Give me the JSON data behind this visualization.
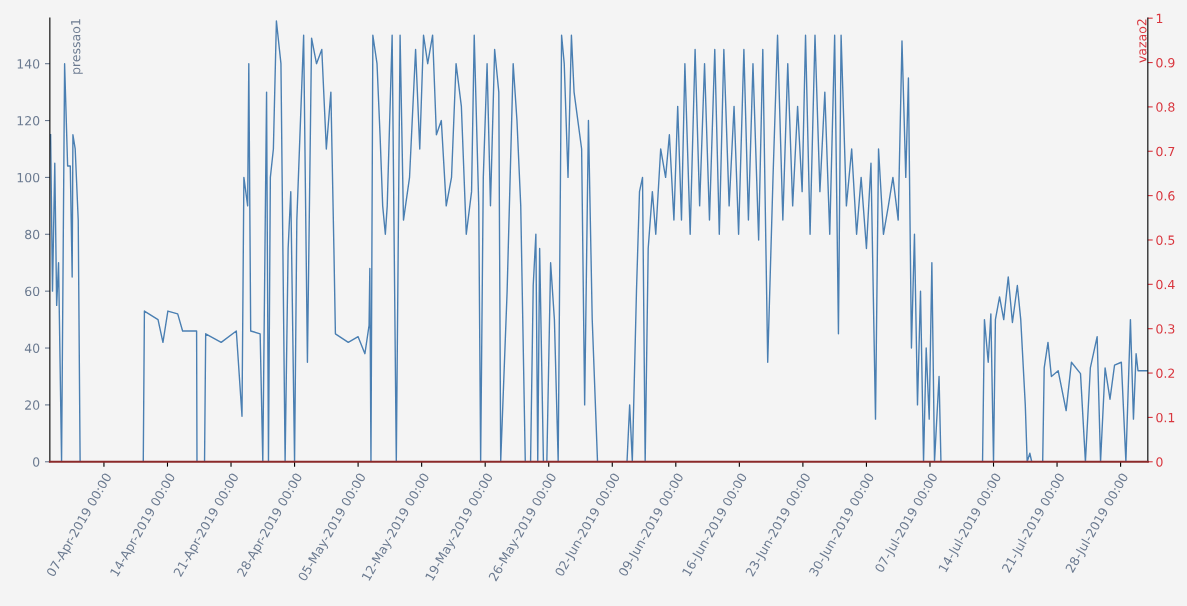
{
  "chart_data": {
    "type": "line",
    "ylabel": "pressao1",
    "y2label": "vazao2",
    "xlim": [
      "2019-04-01T01:00",
      "2019-07-31T00:00"
    ],
    "xticks": [
      {
        "value": "2019-04-07",
        "label": "07-Apr-2019 00:00"
      },
      {
        "value": "2019-04-14",
        "label": "14-Apr-2019 00:00"
      },
      {
        "value": "2019-04-21",
        "label": "21-Apr-2019 00:00"
      },
      {
        "value": "2019-04-28",
        "label": "28-Apr-2019 00:00"
      },
      {
        "value": "2019-05-05",
        "label": "05-May-2019 00:00"
      },
      {
        "value": "2019-05-12",
        "label": "12-May-2019 00:00"
      },
      {
        "value": "2019-05-19",
        "label": "19-May-2019 00:00"
      },
      {
        "value": "2019-05-26",
        "label": "26-May-2019 00:00"
      },
      {
        "value": "2019-06-02",
        "label": "02-Jun-2019 00:00"
      },
      {
        "value": "2019-06-09",
        "label": "09-Jun-2019 00:00"
      },
      {
        "value": "2019-06-16",
        "label": "16-Jun-2019 00:00"
      },
      {
        "value": "2019-06-23",
        "label": "23-Jun-2019 00:00"
      },
      {
        "value": "2019-06-30",
        "label": "30-Jun-2019 00:00"
      },
      {
        "value": "2019-07-07",
        "label": "07-Jul-2019 00:00"
      },
      {
        "value": "2019-07-14",
        "label": "14-Jul-2019 00:00"
      },
      {
        "value": "2019-07-21",
        "label": "21-Jul-2019 00:00"
      },
      {
        "value": "2019-07-28",
        "label": "28-Jul-2019 00:00"
      }
    ],
    "ylim": [
      0,
      156
    ],
    "yticks": [
      0,
      20,
      40,
      60,
      80,
      100,
      120,
      140
    ],
    "y2lim": [
      0,
      1
    ],
    "y2ticks": [
      0,
      0.1,
      0.2,
      0.3,
      0.4,
      0.5,
      0.6,
      0.7,
      0.8,
      0.9,
      1
    ],
    "grid": false,
    "legend": false,
    "marker": "none",
    "line_style": "solid",
    "series": [
      {
        "color": "#4a7fb2",
        "x": [
          "2019-04-01T03:00",
          "2019-04-01T08:00",
          "2019-04-01T14:00",
          "2019-04-01T19:00",
          "2019-04-02T00:00",
          "2019-04-02T08:00",
          "2019-04-02T16:00",
          "2019-04-03T00:00",
          "2019-04-03T07:00",
          "2019-04-03T12:00",
          "2019-04-03T14:00",
          "2019-04-03T20:00",
          "2019-04-04T04:00",
          "2019-04-04T09:00",
          "2019-04-11T08:00",
          "2019-04-11T11:00",
          "2019-04-12T23:00",
          "2019-04-13T12:00",
          "2019-04-14T01:00",
          "2019-04-15T03:00",
          "2019-04-15T16:00",
          "2019-04-17T05:00",
          "2019-04-17T06:00",
          "2019-04-18T02:00",
          "2019-04-18T05:00",
          "2019-04-19T22:00",
          "2019-04-21T14:00",
          "2019-04-22T05:00",
          "2019-04-22T10:00",
          "2019-04-22T20:00",
          "2019-04-22T23:00",
          "2019-04-23T04:00",
          "2019-04-24T05:00",
          "2019-04-24T12:00",
          "2019-04-24T22:00",
          "2019-04-25T03:00",
          "2019-04-25T08:00",
          "2019-04-25T16:00",
          "2019-04-26T00:00",
          "2019-04-26T08:00",
          "2019-04-26T12:00",
          "2019-04-26T23:00",
          "2019-04-27T07:00",
          "2019-04-27T14:00",
          "2019-04-28T00:00",
          "2019-04-28T06:00",
          "2019-04-28T14:00",
          "2019-04-29T00:00",
          "2019-04-29T10:00",
          "2019-04-29T21:00",
          "2019-04-30T10:00",
          "2019-05-01T00:00",
          "2019-05-01T12:00",
          "2019-05-02T00:00",
          "2019-05-02T08:00",
          "2019-05-02T12:00",
          "2019-05-03T22:00",
          "2019-05-05T00:00",
          "2019-05-05T18:00",
          "2019-05-06T05:00",
          "2019-05-06T07:00",
          "2019-05-06T10:00",
          "2019-05-06T15:00",
          "2019-05-07T02:00",
          "2019-05-07T10:00",
          "2019-05-07T17:00",
          "2019-05-08T00:00",
          "2019-05-08T05:00",
          "2019-05-08T18:00",
          "2019-05-09T05:00",
          "2019-05-09T15:00",
          "2019-05-10T00:00",
          "2019-05-10T16:00",
          "2019-05-11T08:00",
          "2019-05-11T19:00",
          "2019-05-12T05:00",
          "2019-05-12T16:00",
          "2019-05-13T05:00",
          "2019-05-13T15:00",
          "2019-05-14T04:00",
          "2019-05-14T17:00",
          "2019-05-15T07:00",
          "2019-05-15T19:00",
          "2019-05-16T09:00",
          "2019-05-16T22:00",
          "2019-05-17T12:00",
          "2019-05-17T19:00",
          "2019-05-18T07:00",
          "2019-05-18T12:00",
          "2019-05-18T19:00",
          "2019-05-19T05:00",
          "2019-05-19T14:00",
          "2019-05-20T01:00",
          "2019-05-20T12:00",
          "2019-05-20T17:00",
          "2019-05-21T10:00",
          "2019-05-21T17:00",
          "2019-05-22T02:00",
          "2019-05-22T12:00",
          "2019-05-22T22:00",
          "2019-05-23T10:00",
          "2019-05-24T00:00",
          "2019-05-24T07:00",
          "2019-05-24T14:00",
          "2019-05-24T19:00",
          "2019-05-25T00:00",
          "2019-05-25T10:00",
          "2019-05-25T19:00",
          "2019-05-26T05:00",
          "2019-05-26T15:00",
          "2019-05-27T01:00",
          "2019-05-27T10:00",
          "2019-05-27T17:00",
          "2019-05-28T03:00",
          "2019-05-28T12:00",
          "2019-05-28T19:00",
          "2019-05-29T05:00",
          "2019-05-29T15:00",
          "2019-05-29T23:00",
          "2019-05-30T09:00",
          "2019-05-30T19:00",
          "2019-05-31T09:00",
          "2019-06-01T10:00",
          "2019-06-03T15:00",
          "2019-06-03T22:00",
          "2019-06-04T05:00",
          "2019-06-04T16:00",
          "2019-06-05T00:00",
          "2019-06-05T08:00",
          "2019-06-05T15:00",
          "2019-06-05T23:00",
          "2019-06-06T10:00",
          "2019-06-06T19:00",
          "2019-06-07T08:00",
          "2019-06-07T21:00",
          "2019-06-08T07:00",
          "2019-06-08T19:00",
          "2019-06-09T05:00",
          "2019-06-09T15:00",
          "2019-06-10T00:00",
          "2019-06-10T14:00",
          "2019-06-11T03:00",
          "2019-06-11T15:00",
          "2019-06-12T04:00",
          "2019-06-12T17:00",
          "2019-06-13T07:00",
          "2019-06-13T19:00",
          "2019-06-14T07:00",
          "2019-06-14T21:00",
          "2019-06-15T10:00",
          "2019-06-15T22:00",
          "2019-06-16T12:00",
          "2019-06-17T00:00",
          "2019-06-17T12:00",
          "2019-06-18T03:00",
          "2019-06-18T14:00",
          "2019-06-19T03:00",
          "2019-06-19T17:00",
          "2019-06-20T05:00",
          "2019-06-20T19:00",
          "2019-06-21T08:00",
          "2019-06-21T21:00",
          "2019-06-22T10:00",
          "2019-06-22T22:00",
          "2019-06-23T07:00",
          "2019-06-23T19:00",
          "2019-06-24T08:00",
          "2019-06-24T21:00",
          "2019-06-25T10:00",
          "2019-06-25T23:00",
          "2019-06-26T12:00",
          "2019-06-26T22:00",
          "2019-06-27T05:00",
          "2019-06-27T19:00",
          "2019-06-28T09:00",
          "2019-06-28T22:00",
          "2019-06-29T10:00",
          "2019-06-30T00:00",
          "2019-06-30T12:00",
          "2019-07-01T00:00",
          "2019-07-01T08:00",
          "2019-07-01T21:00",
          "2019-07-02T10:00",
          "2019-07-02T22:00",
          "2019-07-03T12:00",
          "2019-07-03T22:00",
          "2019-07-04T08:00",
          "2019-07-04T15:00",
          "2019-07-04T23:00",
          "2019-07-05T07:00",
          "2019-07-05T15:00",
          "2019-07-05T23:00",
          "2019-07-06T07:00",
          "2019-07-06T14:00",
          "2019-07-06T22:00",
          "2019-07-07T05:00",
          "2019-07-07T12:00",
          "2019-07-08T00:00",
          "2019-07-08T05:00",
          "2019-07-12T19:00",
          "2019-07-13T00:00",
          "2019-07-13T10:00",
          "2019-07-13T17:00",
          "2019-07-14T00:00",
          "2019-07-14T05:00",
          "2019-07-14T16:00",
          "2019-07-15T03:00",
          "2019-07-15T15:00",
          "2019-07-16T02:00",
          "2019-07-16T15:00",
          "2019-07-17T00:00",
          "2019-07-17T12:00",
          "2019-07-17T17:00",
          "2019-07-18T00:00",
          "2019-07-18T05:00",
          "2019-07-19T10:00",
          "2019-07-19T14:00",
          "2019-07-20T00:00",
          "2019-07-20T09:00",
          "2019-07-21T03:00",
          "2019-07-22T00:00",
          "2019-07-22T14:00",
          "2019-07-23T14:00",
          "2019-07-24T03:00",
          "2019-07-24T16:00",
          "2019-07-25T10:00",
          "2019-07-25T19:00",
          "2019-07-26T07:00",
          "2019-07-26T20:00",
          "2019-07-27T08:00",
          "2019-07-28T02:00",
          "2019-07-28T14:00",
          "2019-07-29T02:00",
          "2019-07-29T10:00",
          "2019-07-29T17:00",
          "2019-07-29T22:00",
          "2019-07-30T23:00"
        ],
        "values": [
          115,
          60,
          105,
          55,
          70,
          0,
          140,
          104,
          104,
          65,
          115,
          110,
          85,
          0,
          0,
          53,
          50,
          42,
          53,
          52,
          46,
          46,
          0,
          0,
          45,
          42,
          46,
          16,
          100,
          90,
          140,
          46,
          45,
          0,
          130,
          0,
          100,
          110,
          155,
          145,
          140,
          0,
          75,
          95,
          0,
          85,
          114,
          150,
          35,
          149,
          140,
          145,
          110,
          130,
          75,
          45,
          42,
          44,
          38,
          48,
          68,
          0,
          150,
          140,
          115,
          90,
          80,
          90,
          150,
          0,
          150,
          85,
          100,
          145,
          110,
          150,
          140,
          150,
          115,
          120,
          90,
          100,
          140,
          125,
          80,
          95,
          150,
          90,
          0,
          100,
          140,
          90,
          145,
          130,
          0,
          60,
          95,
          140,
          120,
          90,
          0,
          0,
          62,
          80,
          0,
          75,
          0,
          0,
          70,
          50,
          0,
          150,
          140,
          100,
          150,
          130,
          120,
          110,
          20,
          120,
          50,
          0,
          0,
          0,
          20,
          0,
          60,
          95,
          100,
          0,
          75,
          95,
          80,
          110,
          100,
          115,
          85,
          125,
          85,
          140,
          80,
          145,
          90,
          140,
          85,
          145,
          80,
          145,
          90,
          125,
          80,
          145,
          85,
          140,
          78,
          145,
          35,
          100,
          150,
          85,
          140,
          90,
          125,
          95,
          150,
          80,
          150,
          95,
          130,
          80,
          150,
          45,
          150,
          90,
          110,
          80,
          100,
          75,
          105,
          15,
          110,
          80,
          90,
          100,
          85,
          148,
          100,
          135,
          40,
          80,
          20,
          60,
          0,
          40,
          15,
          70,
          0,
          30,
          0,
          0,
          50,
          35,
          52,
          0,
          50,
          58,
          50,
          65,
          49,
          62,
          50,
          20,
          0,
          3,
          0,
          0,
          33,
          42,
          30,
          32,
          18,
          35,
          31,
          0,
          33,
          44,
          0,
          33,
          22,
          34,
          35,
          0,
          50,
          15,
          38,
          32,
          32
        ]
      },
      {
        "color": "#8b2a2a",
        "axis": "y2",
        "x": [
          "2019-04-01T01:00",
          "2019-07-31T00:00"
        ],
        "values": [
          0,
          0
        ]
      }
    ]
  }
}
